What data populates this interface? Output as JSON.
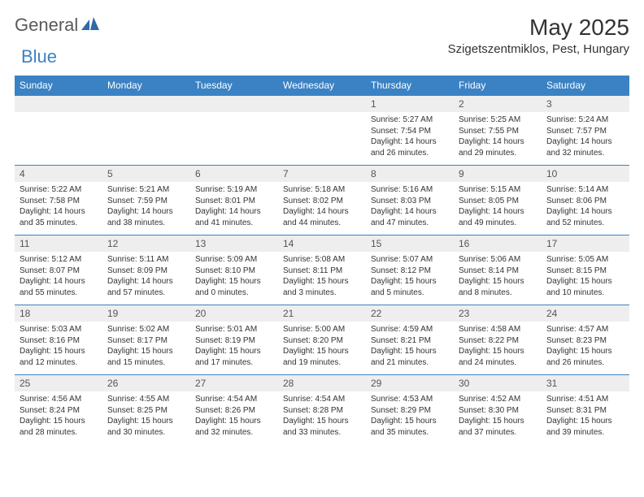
{
  "logo": {
    "word1": "General",
    "word2": "Blue"
  },
  "title": "May 2025",
  "location": "Szigetszentmiklos, Pest, Hungary",
  "colors": {
    "header_bg": "#3b82c4",
    "header_fg": "#ffffff",
    "daynum_bg": "#eeeeee",
    "rule": "#3b82c4",
    "text": "#333333",
    "logo_gray": "#5a5a5a",
    "logo_blue": "#3b82c4"
  },
  "typography": {
    "title_fontsize": 28,
    "location_fontsize": 15,
    "header_fontsize": 12,
    "daynum_fontsize": 12,
    "body_fontsize": 10
  },
  "weekdays": [
    "Sunday",
    "Monday",
    "Tuesday",
    "Wednesday",
    "Thursday",
    "Friday",
    "Saturday"
  ],
  "weeks": [
    [
      null,
      null,
      null,
      null,
      {
        "n": "1",
        "sr": "Sunrise: 5:27 AM",
        "ss": "Sunset: 7:54 PM",
        "dl": "Daylight: 14 hours and 26 minutes."
      },
      {
        "n": "2",
        "sr": "Sunrise: 5:25 AM",
        "ss": "Sunset: 7:55 PM",
        "dl": "Daylight: 14 hours and 29 minutes."
      },
      {
        "n": "3",
        "sr": "Sunrise: 5:24 AM",
        "ss": "Sunset: 7:57 PM",
        "dl": "Daylight: 14 hours and 32 minutes."
      }
    ],
    [
      {
        "n": "4",
        "sr": "Sunrise: 5:22 AM",
        "ss": "Sunset: 7:58 PM",
        "dl": "Daylight: 14 hours and 35 minutes."
      },
      {
        "n": "5",
        "sr": "Sunrise: 5:21 AM",
        "ss": "Sunset: 7:59 PM",
        "dl": "Daylight: 14 hours and 38 minutes."
      },
      {
        "n": "6",
        "sr": "Sunrise: 5:19 AM",
        "ss": "Sunset: 8:01 PM",
        "dl": "Daylight: 14 hours and 41 minutes."
      },
      {
        "n": "7",
        "sr": "Sunrise: 5:18 AM",
        "ss": "Sunset: 8:02 PM",
        "dl": "Daylight: 14 hours and 44 minutes."
      },
      {
        "n": "8",
        "sr": "Sunrise: 5:16 AM",
        "ss": "Sunset: 8:03 PM",
        "dl": "Daylight: 14 hours and 47 minutes."
      },
      {
        "n": "9",
        "sr": "Sunrise: 5:15 AM",
        "ss": "Sunset: 8:05 PM",
        "dl": "Daylight: 14 hours and 49 minutes."
      },
      {
        "n": "10",
        "sr": "Sunrise: 5:14 AM",
        "ss": "Sunset: 8:06 PM",
        "dl": "Daylight: 14 hours and 52 minutes."
      }
    ],
    [
      {
        "n": "11",
        "sr": "Sunrise: 5:12 AM",
        "ss": "Sunset: 8:07 PM",
        "dl": "Daylight: 14 hours and 55 minutes."
      },
      {
        "n": "12",
        "sr": "Sunrise: 5:11 AM",
        "ss": "Sunset: 8:09 PM",
        "dl": "Daylight: 14 hours and 57 minutes."
      },
      {
        "n": "13",
        "sr": "Sunrise: 5:09 AM",
        "ss": "Sunset: 8:10 PM",
        "dl": "Daylight: 15 hours and 0 minutes."
      },
      {
        "n": "14",
        "sr": "Sunrise: 5:08 AM",
        "ss": "Sunset: 8:11 PM",
        "dl": "Daylight: 15 hours and 3 minutes."
      },
      {
        "n": "15",
        "sr": "Sunrise: 5:07 AM",
        "ss": "Sunset: 8:12 PM",
        "dl": "Daylight: 15 hours and 5 minutes."
      },
      {
        "n": "16",
        "sr": "Sunrise: 5:06 AM",
        "ss": "Sunset: 8:14 PM",
        "dl": "Daylight: 15 hours and 8 minutes."
      },
      {
        "n": "17",
        "sr": "Sunrise: 5:05 AM",
        "ss": "Sunset: 8:15 PM",
        "dl": "Daylight: 15 hours and 10 minutes."
      }
    ],
    [
      {
        "n": "18",
        "sr": "Sunrise: 5:03 AM",
        "ss": "Sunset: 8:16 PM",
        "dl": "Daylight: 15 hours and 12 minutes."
      },
      {
        "n": "19",
        "sr": "Sunrise: 5:02 AM",
        "ss": "Sunset: 8:17 PM",
        "dl": "Daylight: 15 hours and 15 minutes."
      },
      {
        "n": "20",
        "sr": "Sunrise: 5:01 AM",
        "ss": "Sunset: 8:19 PM",
        "dl": "Daylight: 15 hours and 17 minutes."
      },
      {
        "n": "21",
        "sr": "Sunrise: 5:00 AM",
        "ss": "Sunset: 8:20 PM",
        "dl": "Daylight: 15 hours and 19 minutes."
      },
      {
        "n": "22",
        "sr": "Sunrise: 4:59 AM",
        "ss": "Sunset: 8:21 PM",
        "dl": "Daylight: 15 hours and 21 minutes."
      },
      {
        "n": "23",
        "sr": "Sunrise: 4:58 AM",
        "ss": "Sunset: 8:22 PM",
        "dl": "Daylight: 15 hours and 24 minutes."
      },
      {
        "n": "24",
        "sr": "Sunrise: 4:57 AM",
        "ss": "Sunset: 8:23 PM",
        "dl": "Daylight: 15 hours and 26 minutes."
      }
    ],
    [
      {
        "n": "25",
        "sr": "Sunrise: 4:56 AM",
        "ss": "Sunset: 8:24 PM",
        "dl": "Daylight: 15 hours and 28 minutes."
      },
      {
        "n": "26",
        "sr": "Sunrise: 4:55 AM",
        "ss": "Sunset: 8:25 PM",
        "dl": "Daylight: 15 hours and 30 minutes."
      },
      {
        "n": "27",
        "sr": "Sunrise: 4:54 AM",
        "ss": "Sunset: 8:26 PM",
        "dl": "Daylight: 15 hours and 32 minutes."
      },
      {
        "n": "28",
        "sr": "Sunrise: 4:54 AM",
        "ss": "Sunset: 8:28 PM",
        "dl": "Daylight: 15 hours and 33 minutes."
      },
      {
        "n": "29",
        "sr": "Sunrise: 4:53 AM",
        "ss": "Sunset: 8:29 PM",
        "dl": "Daylight: 15 hours and 35 minutes."
      },
      {
        "n": "30",
        "sr": "Sunrise: 4:52 AM",
        "ss": "Sunset: 8:30 PM",
        "dl": "Daylight: 15 hours and 37 minutes."
      },
      {
        "n": "31",
        "sr": "Sunrise: 4:51 AM",
        "ss": "Sunset: 8:31 PM",
        "dl": "Daylight: 15 hours and 39 minutes."
      }
    ]
  ]
}
